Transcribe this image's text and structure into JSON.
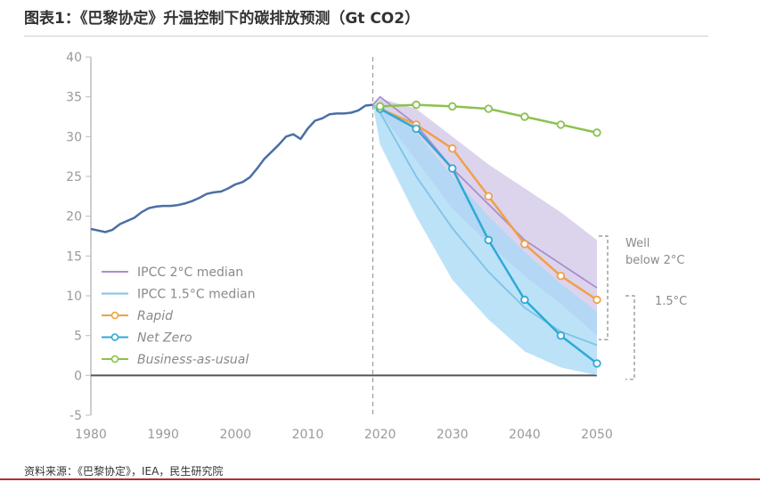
{
  "header": {
    "title": "图表1：《巴黎协定》升温控制下的碳排放预测（Gt CO2）"
  },
  "footer": {
    "source": "资料来源：《巴黎协定》，IEA，民生研究院"
  },
  "chart_data": {
    "type": "line",
    "title": "图表1：《巴黎协定》升温控制下的碳排放预测（Gt CO2）",
    "xlabel": "",
    "ylabel": "",
    "xlim": [
      1980,
      2050
    ],
    "ylim": [
      -5,
      40
    ],
    "x_ticks": [
      "1980",
      "1990",
      "2000",
      "2010",
      "2020",
      "2030",
      "2040",
      "2050"
    ],
    "y_ticks": [
      "-5",
      "0",
      "5",
      "10",
      "15",
      "20",
      "25",
      "30",
      "35",
      "40"
    ],
    "grid": false,
    "legend_position": "bottom-left",
    "reference_line_x": 2019,
    "colors": {
      "historical": "#4a6fa5",
      "ipcc2": "#a98fcb",
      "ipcc15": "#7fc3e8",
      "rapid": "#f0a048",
      "netzero": "#2fa9d6",
      "bau": "#8cc24f",
      "band2": "#cdc2e6",
      "band15": "#a6d8f5",
      "axis": "#555555"
    },
    "historical": {
      "x": [
        1980,
        1981,
        1982,
        1983,
        1984,
        1985,
        1986,
        1987,
        1988,
        1989,
        1990,
        1991,
        1992,
        1993,
        1994,
        1995,
        1996,
        1997,
        1998,
        1999,
        2000,
        2001,
        2002,
        2003,
        2004,
        2005,
        2006,
        2007,
        2008,
        2009,
        2010,
        2011,
        2012,
        2013,
        2014,
        2015,
        2016,
        2017,
        2018,
        2019
      ],
      "y": [
        18.4,
        18.2,
        18.0,
        18.3,
        19.0,
        19.4,
        19.8,
        20.5,
        21.0,
        21.2,
        21.3,
        21.3,
        21.4,
        21.6,
        21.9,
        22.3,
        22.8,
        23.0,
        23.1,
        23.5,
        24.0,
        24.3,
        24.9,
        26.0,
        27.2,
        28.1,
        29.0,
        30.0,
        30.3,
        29.7,
        31.0,
        32.0,
        32.3,
        32.8,
        32.9,
        32.9,
        33.0,
        33.3,
        33.9,
        34.0
      ]
    },
    "bands": [
      {
        "name": "Well below 2°C",
        "x": [
          2019,
          2020,
          2025,
          2030,
          2035,
          2040,
          2045,
          2050
        ],
        "upper": [
          34.0,
          34.8,
          33.5,
          30.0,
          26.5,
          23.5,
          20.5,
          17.0
        ],
        "lower": [
          34.0,
          33.0,
          27.0,
          21.0,
          16.5,
          12.5,
          9.0,
          5.0
        ]
      },
      {
        "name": "1.5°C",
        "x": [
          2019,
          2020,
          2025,
          2030,
          2035,
          2040,
          2045,
          2050
        ],
        "upper": [
          34.0,
          34.0,
          30.5,
          25.0,
          20.0,
          15.5,
          11.5,
          8.0
        ],
        "lower": [
          34.0,
          29.0,
          20.0,
          12.0,
          7.0,
          3.0,
          1.0,
          0.0
        ]
      }
    ],
    "series": [
      {
        "name": "IPCC 2°C median",
        "key": "ipcc2",
        "markers": false,
        "x": [
          2019,
          2020,
          2025,
          2030,
          2035,
          2040,
          2045,
          2050
        ],
        "y": [
          34.0,
          35.0,
          31.5,
          26.0,
          21.5,
          17.0,
          14.0,
          11.0
        ]
      },
      {
        "name": "IPCC 1.5°C median",
        "key": "ipcc15",
        "markers": false,
        "x": [
          2019,
          2020,
          2025,
          2030,
          2035,
          2040,
          2045,
          2050
        ],
        "y": [
          34.0,
          33.0,
          25.0,
          18.5,
          13.0,
          8.5,
          5.5,
          3.8
        ]
      },
      {
        "name": "Rapid",
        "key": "rapid",
        "markers": true,
        "x": [
          2020,
          2025,
          2030,
          2035,
          2040,
          2045,
          2050
        ],
        "y": [
          33.5,
          31.5,
          28.5,
          22.5,
          16.5,
          12.5,
          9.5
        ]
      },
      {
        "name": "Net Zero",
        "key": "netzero",
        "markers": true,
        "x": [
          2020,
          2025,
          2030,
          2035,
          2040,
          2045,
          2050
        ],
        "y": [
          33.5,
          31.0,
          26.0,
          17.0,
          9.5,
          5.0,
          1.5
        ]
      },
      {
        "name": "Business-as-usual",
        "key": "bau",
        "markers": true,
        "x": [
          2020,
          2025,
          2030,
          2035,
          2040,
          2045,
          2050
        ],
        "y": [
          33.8,
          34.0,
          33.8,
          33.5,
          32.5,
          31.5,
          30.5
        ]
      }
    ],
    "legend": [
      {
        "label": "IPCC 2°C median",
        "key": "ipcc2",
        "markers": false,
        "italic": false
      },
      {
        "label": "IPCC 1.5°C median",
        "key": "ipcc15",
        "markers": false,
        "italic": false
      },
      {
        "label": "Rapid",
        "key": "rapid",
        "markers": true,
        "italic": true
      },
      {
        "label": "Net Zero",
        "key": "netzero",
        "markers": true,
        "italic": true
      },
      {
        "label": "Business-as-usual",
        "key": "bau",
        "markers": true,
        "italic": true
      }
    ],
    "annotations": [
      {
        "text": "Well",
        "line": 1,
        "group": "well"
      },
      {
        "text": "below 2°C",
        "line": 2,
        "group": "well"
      },
      {
        "text": "1.5°C",
        "line": 1,
        "group": "onefive"
      }
    ],
    "brackets": [
      {
        "name": "Well below 2°C",
        "y_from": 17.5,
        "y_to": 4.5
      },
      {
        "name": "1.5°C",
        "y_from": 10.0,
        "y_to": -0.5
      }
    ]
  }
}
